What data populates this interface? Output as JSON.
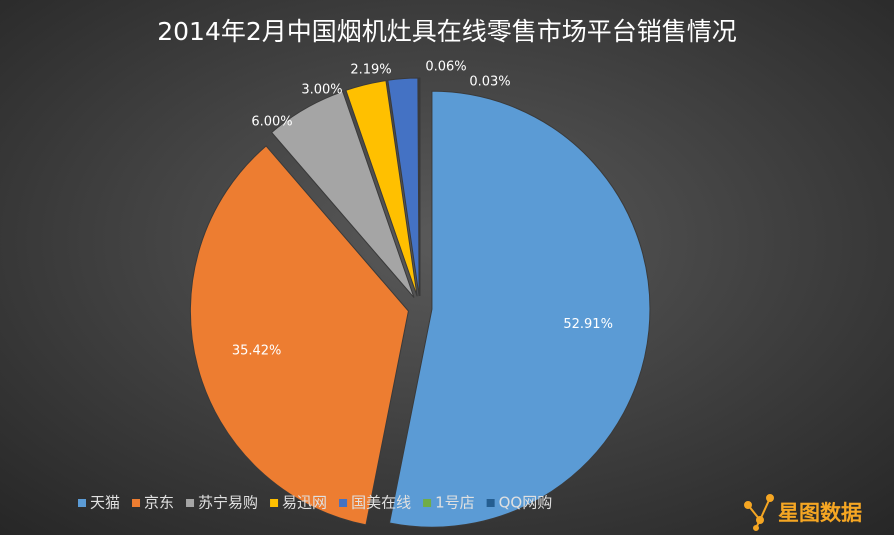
{
  "chart_data": {
    "type": "pie",
    "title": "2014年2月中国烟机灶具在线零售市场平台销售情况",
    "categories": [
      "天猫",
      "京东",
      "苏宁易购",
      "易迅网",
      "国美在线",
      "1号店",
      "QQ网购"
    ],
    "values": [
      52.91,
      35.42,
      6.0,
      3.0,
      2.19,
      0.06,
      0.03
    ],
    "value_labels": [
      "52.91%",
      "35.42%",
      "6.00%",
      "3.00%",
      "2.19%",
      "0.06%",
      "0.03%"
    ],
    "colors": [
      "#5b9bd5",
      "#ed7d31",
      "#a5a5a5",
      "#ffc000",
      "#4472c4",
      "#70ad47",
      "#255e91"
    ],
    "legend": "bottom",
    "watermark": "星图数据"
  }
}
